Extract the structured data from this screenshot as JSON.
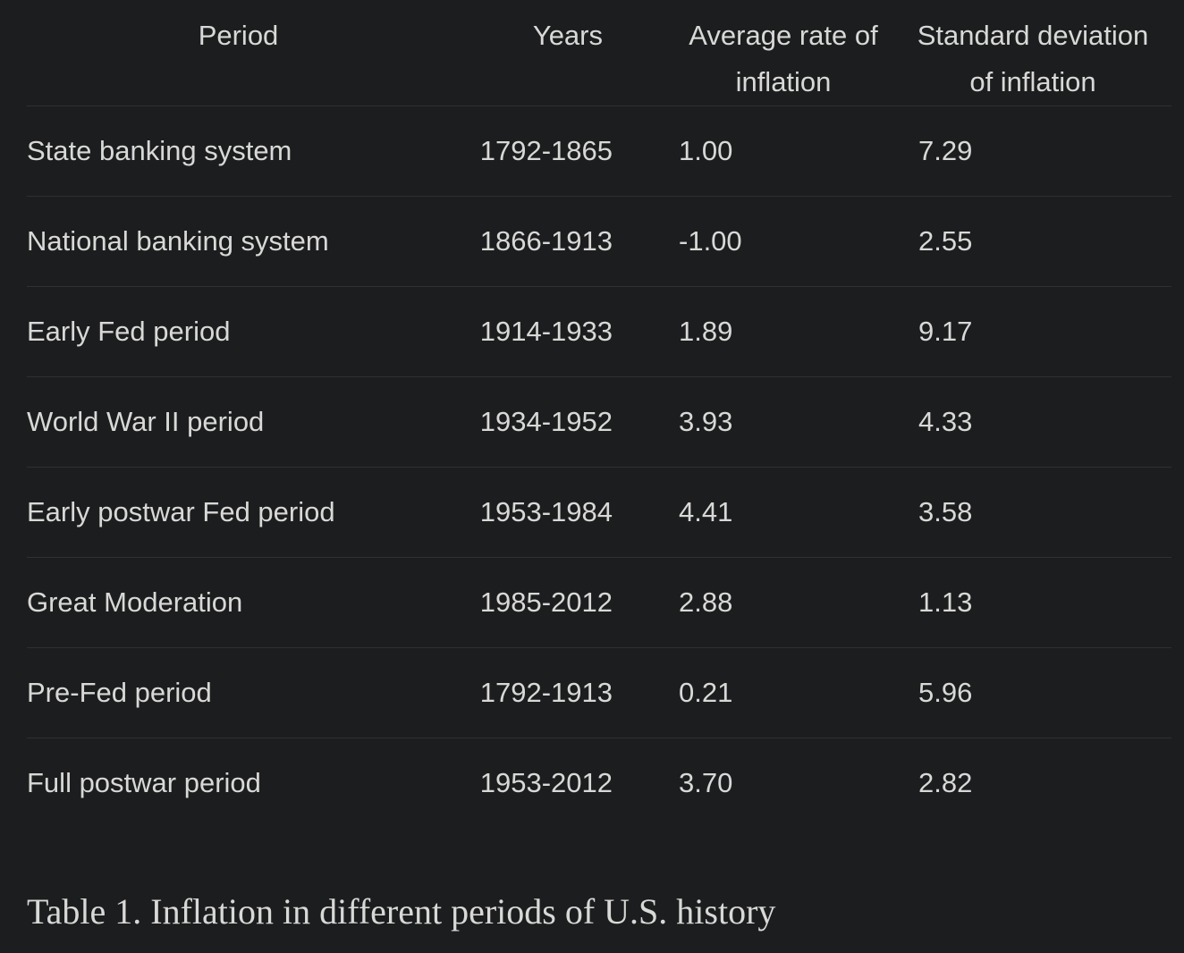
{
  "table": {
    "headers": {
      "period": "Period",
      "years": "Years",
      "avg_line1": "Average rate of",
      "avg_line2": "inflation",
      "std_line1": "Standard deviation",
      "std_line2": "of inflation"
    },
    "rows": [
      {
        "period": "State banking system",
        "years": "1792-1865",
        "avg": "1.00",
        "std": "7.29"
      },
      {
        "period": "National banking system",
        "years": "1866-1913",
        "avg": "-1.00",
        "std": "2.55"
      },
      {
        "period": "Early Fed period",
        "years": "1914-1933",
        "avg": "1.89",
        "std": "9.17"
      },
      {
        "period": "World War II period",
        "years": "1934-1952",
        "avg": "3.93",
        "std": "4.33"
      },
      {
        "period": "Early postwar Fed period",
        "years": "1953-1984",
        "avg": "4.41",
        "std": "3.58"
      },
      {
        "period": "Great Moderation",
        "years": "1985-2012",
        "avg": "2.88",
        "std": "1.13"
      },
      {
        "period": "Pre-Fed period",
        "years": "1792-1913",
        "avg": "0.21",
        "std": "5.96"
      },
      {
        "period": "Full postwar period",
        "years": "1953-2012",
        "avg": "3.70",
        "std": "2.82"
      }
    ]
  },
  "caption": "Table 1. Inflation in different periods of U.S. history"
}
